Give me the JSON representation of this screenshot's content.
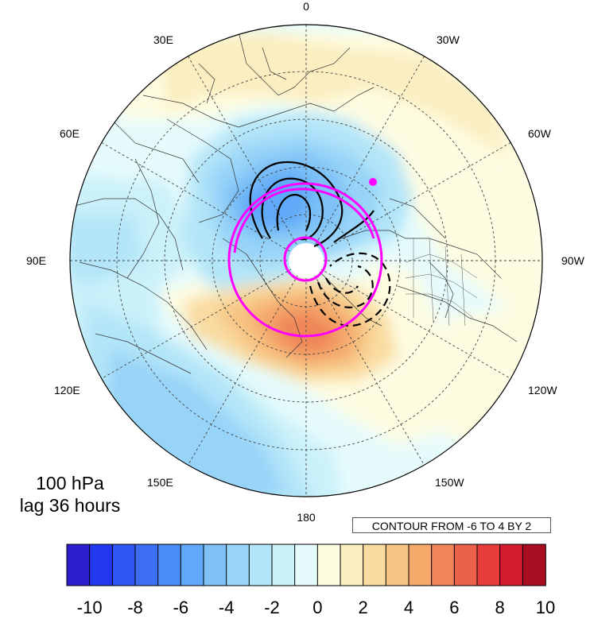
{
  "plot": {
    "level_label": "100 hPa",
    "lag_label": "lag 36 hours",
    "contour_info": "CONTOUR FROM -6 TO 4 BY 2"
  },
  "longitude_labels": {
    "lon_0": "0",
    "lon_30w": "30W",
    "lon_60w": "60W",
    "lon_90w": "90W",
    "lon_120w": "120W",
    "lon_150w": "150W",
    "lon_180": "180",
    "lon_150e": "150E",
    "lon_120e": "120E",
    "lon_90e": "90E",
    "lon_60e": "60E",
    "lon_30e": "30E"
  },
  "colorbar": {
    "colors": [
      "#2d1fd0",
      "#2437f0",
      "#2f56f5",
      "#3c6ff5",
      "#4a8cf7",
      "#5fa9f8",
      "#7ec1f7",
      "#98d4f8",
      "#b3e5f8",
      "#cbf1f9",
      "#e6fbfc",
      "#fefde2",
      "#fbeec0",
      "#f9dba0",
      "#f7c483",
      "#f4a86a",
      "#f08659",
      "#ec614b",
      "#e83b3c",
      "#d21d2e",
      "#a80c20"
    ],
    "tick_labels": [
      "-10",
      "-8",
      "-6",
      "-4",
      "-2",
      "0",
      "2",
      "4",
      "6",
      "8",
      "10"
    ]
  },
  "colors": {
    "magenta_contour": "#ff00ff",
    "black_contour": "#000000"
  }
}
